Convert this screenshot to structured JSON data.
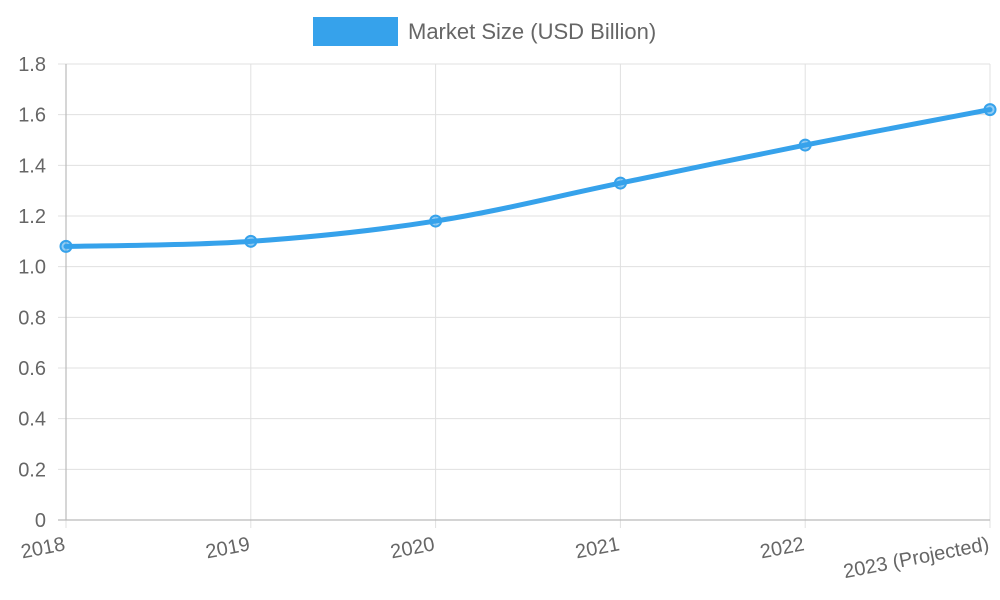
{
  "chart_data": {
    "type": "line",
    "categories": [
      "2018",
      "2019",
      "2020",
      "2021",
      "2022",
      "2023 (Projected)"
    ],
    "series": [
      {
        "name": "Market Size (USD Billion)",
        "values": [
          1.08,
          1.1,
          1.18,
          1.33,
          1.48,
          1.62
        ],
        "color": "#36a2eb"
      }
    ],
    "ylim": [
      0,
      1.8
    ],
    "yticks": [
      "0",
      "0.2",
      "0.4",
      "0.6",
      "0.8",
      "1.0",
      "1.2",
      "1.4",
      "1.6",
      "1.8"
    ],
    "grid": true,
    "legend_position": "top"
  }
}
